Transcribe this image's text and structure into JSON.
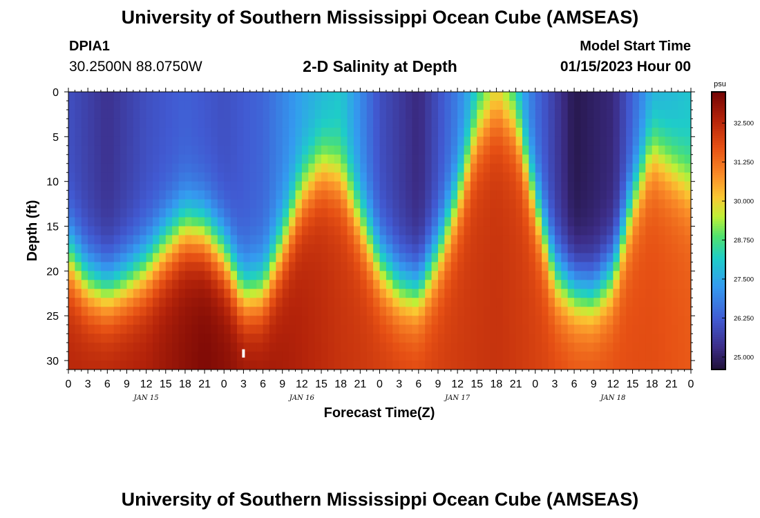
{
  "header": {
    "title": "University of Southern Mississippi Ocean Cube (AMSEAS)",
    "station": "DPIA1",
    "coords": "30.2500N  88.0750W",
    "subtitle": "2-D Salinity at Depth",
    "model_start_label": "Model Start Time",
    "model_start_value": "01/15/2023 Hour 00"
  },
  "footer": {
    "title": "University of Southern Mississippi Ocean Cube (AMSEAS)"
  },
  "chart_data": {
    "type": "heatmap",
    "title": "2-D Salinity at Depth",
    "xlabel": "Forecast Time(Z)",
    "ylabel": "Depth (ft)",
    "x_tick_labels": [
      "0",
      "3",
      "6",
      "9",
      "12",
      "15",
      "18",
      "21",
      "0",
      "3",
      "6",
      "9",
      "12",
      "15",
      "18",
      "21",
      "0",
      "3",
      "6",
      "9",
      "12",
      "15",
      "18",
      "21",
      "0",
      "3",
      "6",
      "9",
      "12",
      "15",
      "18",
      "21",
      "0"
    ],
    "x_range_hours": [
      0,
      96
    ],
    "day_labels": [
      {
        "label": "JAN 15",
        "hour": 12
      },
      {
        "label": "JAN 16",
        "hour": 36
      },
      {
        "label": "JAN 17",
        "hour": 60
      },
      {
        "label": "JAN 18",
        "hour": 84
      }
    ],
    "y_ticks": [
      0,
      5,
      10,
      15,
      20,
      25,
      30
    ],
    "y_range_ft": [
      0,
      31
    ],
    "y_inverted": true,
    "colorbar": {
      "unit": "psu",
      "ticks": [
        "25.000",
        "26.250",
        "27.500",
        "28.750",
        "30.000",
        "31.250",
        "32.500"
      ],
      "range": [
        24.6,
        33.5
      ]
    },
    "halocline_depth_ft": [
      {
        "hour": 0,
        "depth": 18
      },
      {
        "hour": 3,
        "depth": 21
      },
      {
        "hour": 6,
        "depth": 22
      },
      {
        "hour": 9,
        "depth": 21
      },
      {
        "hour": 12,
        "depth": 19.5
      },
      {
        "hour": 15,
        "depth": 17
      },
      {
        "hour": 18,
        "depth": 15
      },
      {
        "hour": 21,
        "depth": 15.5
      },
      {
        "hour": 24,
        "depth": 18
      },
      {
        "hour": 27,
        "depth": 22.5
      },
      {
        "hour": 30,
        "depth": 22
      },
      {
        "hour": 33,
        "depth": 17
      },
      {
        "hour": 36,
        "depth": 11
      },
      {
        "hour": 39,
        "depth": 8
      },
      {
        "hour": 42,
        "depth": 9
      },
      {
        "hour": 45,
        "depth": 14
      },
      {
        "hour": 48,
        "depth": 19
      },
      {
        "hour": 51,
        "depth": 21.5
      },
      {
        "hour": 54,
        "depth": 22
      },
      {
        "hour": 57,
        "depth": 18
      },
      {
        "hour": 60,
        "depth": 12
      },
      {
        "hour": 63,
        "depth": 4
      },
      {
        "hour": 66,
        "depth": 1
      },
      {
        "hour": 69,
        "depth": 3
      },
      {
        "hour": 72,
        "depth": 12
      },
      {
        "hour": 75,
        "depth": 20
      },
      {
        "hour": 78,
        "depth": 22
      },
      {
        "hour": 81,
        "depth": 22.5
      },
      {
        "hour": 84,
        "depth": 20
      },
      {
        "hour": 87,
        "depth": 12
      },
      {
        "hour": 90,
        "depth": 6
      },
      {
        "hour": 93,
        "depth": 8
      },
      {
        "hour": 96,
        "depth": 10
      }
    ],
    "surface_salinity_psu": [
      {
        "hour": 0,
        "value": 26.0
      },
      {
        "hour": 6,
        "value": 25.4
      },
      {
        "hour": 12,
        "value": 26.0
      },
      {
        "hour": 18,
        "value": 26.3
      },
      {
        "hour": 24,
        "value": 26.0
      },
      {
        "hour": 30,
        "value": 26.4
      },
      {
        "hour": 36,
        "value": 27.4
      },
      {
        "hour": 42,
        "value": 28.0
      },
      {
        "hour": 48,
        "value": 26.0
      },
      {
        "hour": 54,
        "value": 25.2
      },
      {
        "hour": 60,
        "value": 26.8
      },
      {
        "hour": 66,
        "value": 29.0
      },
      {
        "hour": 72,
        "value": 26.5
      },
      {
        "hour": 78,
        "value": 24.8
      },
      {
        "hour": 84,
        "value": 25.2
      },
      {
        "hour": 90,
        "value": 27.5
      },
      {
        "hour": 96,
        "value": 28.0
      }
    ],
    "bottom_salinity_psu": [
      {
        "hour": 0,
        "value": 32.6
      },
      {
        "hour": 12,
        "value": 32.8
      },
      {
        "hour": 21,
        "value": 33.4
      },
      {
        "hour": 30,
        "value": 33.0
      },
      {
        "hour": 42,
        "value": 32.3
      },
      {
        "hour": 54,
        "value": 32.0
      },
      {
        "hour": 66,
        "value": 32.3
      },
      {
        "hour": 78,
        "value": 31.8
      },
      {
        "hour": 90,
        "value": 31.8
      },
      {
        "hour": 96,
        "value": 31.6
      }
    ],
    "marker": {
      "hour": 27,
      "depth": 29.2
    }
  }
}
